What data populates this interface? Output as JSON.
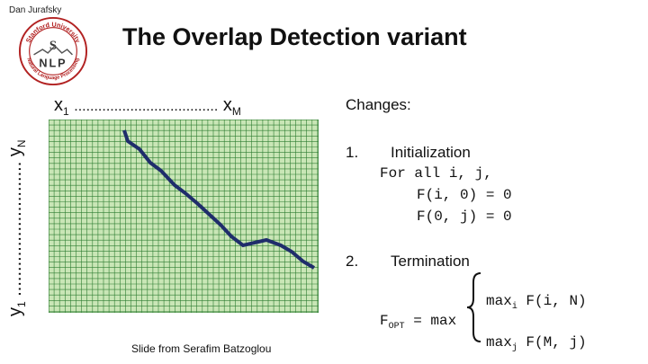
{
  "slide": {
    "author": "Dan Jurafsky",
    "title": "The Overlap Detection variant",
    "credit": "Slide from Serafim Batzoglou"
  },
  "logo": {
    "top_text": "Stanford University",
    "bottom_text": "Natural Language Processing",
    "letter_top": "S",
    "letters_bottom": "NLP",
    "color": "#b22222"
  },
  "axes": {
    "x_start": "x",
    "x_start_sub": "1",
    "x_dots": "....................................",
    "x_end": "x",
    "x_end_sub": "M",
    "y_start": "y",
    "y_start_sub": "1",
    "y_dots": "...........................",
    "y_end": "y",
    "y_end_sub": "N"
  },
  "grid": {
    "fill_color": "#c9e6b6",
    "line_color": "#2e7d32",
    "path_color": "#1f2d6b"
  },
  "changes": {
    "heading": "Changes:",
    "item1_number": "1.",
    "item1_label": "Initialization",
    "item1_line1": "For all i, j,",
    "item1_line2": "F(i, 0) = 0",
    "item1_line3": "F(0, j) = 0",
    "item2_number": "2.",
    "item2_label": "Termination",
    "fopt": "F",
    "fopt_sub": "OPT",
    "fopt_eq": " = max",
    "max1_pre": "max",
    "max1_sub": "i",
    "max1_post": " F(i, N)",
    "max2_pre": "max",
    "max2_sub": "j",
    "max2_post": " F(M, j)"
  }
}
